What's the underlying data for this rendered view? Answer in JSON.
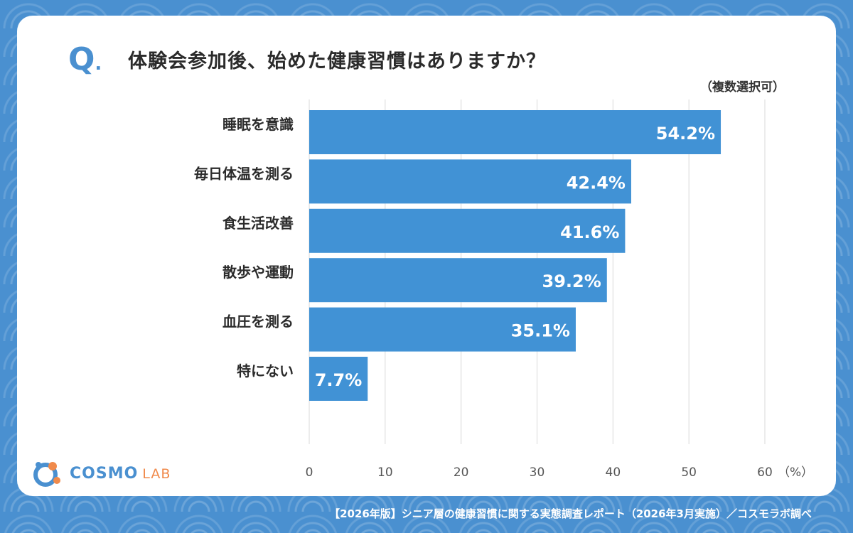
{
  "question": {
    "mark": "Q",
    "mark_dot": ".",
    "text": "体験会参加後、始めた健康習慣はありますか？",
    "note": "（複数選択可）"
  },
  "chart_data": {
    "type": "bar",
    "orientation": "horizontal",
    "categories": [
      "睡眠を意識",
      "毎日体温を測る",
      "食生活改善",
      "散歩や運動",
      "血圧を測る",
      "特にない"
    ],
    "values": [
      54.2,
      42.4,
      41.6,
      39.2,
      35.1,
      7.7
    ],
    "value_labels": [
      "54.2%",
      "42.4%",
      "41.6%",
      "39.2%",
      "35.1%",
      "7.7%"
    ],
    "x_ticks": [
      "0",
      "10",
      "20",
      "30",
      "40",
      "50",
      "60"
    ],
    "x_unit": "（%）",
    "xlim": [
      0,
      60
    ],
    "grid": true,
    "bar_color": "#4192d5"
  },
  "logo": {
    "brand": "COSMO",
    "suffix": "LAB"
  },
  "footer": {
    "source": "【2026年版】シニア層の健康習慣に関する実態調査レポート（2026年3月実施）／コスモラボ調べ"
  },
  "colors": {
    "background": "#4a90d0",
    "accent": "#4a90d0",
    "logo_orange": "#f08a4b"
  }
}
